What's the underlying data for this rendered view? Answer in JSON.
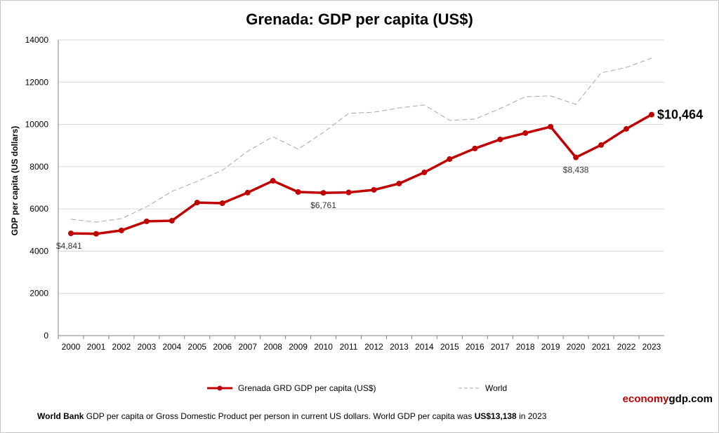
{
  "chart_data": {
    "type": "line",
    "title": "Grenada: GDP per capita (US$)",
    "ylabel": "GDP per capita (US dollars)",
    "xlabel": "",
    "ylim": [
      0,
      14000
    ],
    "yticks": [
      0,
      2000,
      4000,
      6000,
      8000,
      10000,
      12000,
      14000
    ],
    "grid": true,
    "legend_placement": "bottom",
    "categories": [
      "2000",
      "2001",
      "2002",
      "2003",
      "2004",
      "2005",
      "2006",
      "2007",
      "2008",
      "2009",
      "2010",
      "2011",
      "2012",
      "2013",
      "2014",
      "2015",
      "2016",
      "2017",
      "2018",
      "2019",
      "2020",
      "2021",
      "2022",
      "2023"
    ],
    "series": [
      {
        "name": "Grenada GRD GDP per capita (US$)",
        "color": "#c00000",
        "values": [
          4841,
          4820,
          4980,
          5410,
          5440,
          6300,
          6270,
          6770,
          7330,
          6800,
          6761,
          6780,
          6900,
          7200,
          7730,
          8360,
          8860,
          9290,
          9590,
          9890,
          8438,
          9025,
          9790,
          10464
        ]
      },
      {
        "name": "World",
        "color": "#a6a6a6",
        "dashed": true,
        "values": [
          5510,
          5375,
          5540,
          6100,
          6830,
          7300,
          7830,
          8730,
          9420,
          8830,
          9620,
          10520,
          10580,
          10780,
          10920,
          10190,
          10250,
          10750,
          11310,
          11350,
          10950,
          12440,
          12700,
          13138
        ]
      }
    ],
    "annotations": [
      {
        "index": 0,
        "text": "$4,841"
      },
      {
        "index": 10,
        "text": "$6,761"
      },
      {
        "index": 20,
        "text": "$8,438"
      },
      {
        "index": 23,
        "text": "$10,464"
      }
    ]
  },
  "brand": {
    "part1": "economy",
    "part2": "gdp.com"
  },
  "footer": {
    "bold1": "World Bank",
    "text1": " GDP per capita or Gross Domestic Product per person  in current US dollars.   World GDP per capita was ",
    "bold2": "US$13,138",
    "text2": "  in 2023"
  }
}
